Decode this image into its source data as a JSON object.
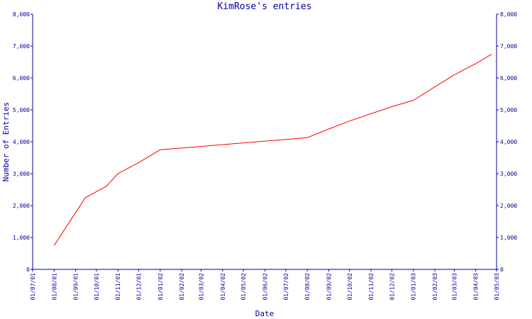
{
  "chart_data": {
    "type": "line",
    "title": "KimRose's entries",
    "xlabel": "Date",
    "ylabel": "Number of Entries",
    "ylim": [
      0,
      8000
    ],
    "yticks": [
      0,
      1000,
      2000,
      3000,
      4000,
      5000,
      6000,
      7000,
      8000
    ],
    "ytick_labels": [
      "0",
      "1,000",
      "2,000",
      "3,000",
      "4,000",
      "5,000",
      "6,000",
      "7,000",
      "8,000"
    ],
    "xlim": [
      "2001-07-01",
      "2003-05-01"
    ],
    "xtick_dates": [
      "2001-07-01",
      "2001-08-01",
      "2001-09-01",
      "2001-10-01",
      "2001-11-01",
      "2001-12-01",
      "2002-01-01",
      "2002-02-01",
      "2002-03-01",
      "2002-04-01",
      "2002-05-01",
      "2002-06-01",
      "2002-07-01",
      "2002-08-01",
      "2002-09-01",
      "2002-10-01",
      "2002-11-01",
      "2002-12-01",
      "2003-01-01",
      "2003-02-01",
      "2003-03-01",
      "2003-04-01",
      "2003-05-01"
    ],
    "xtick_labels": [
      "01/07/01",
      "01/08/01",
      "01/09/01",
      "01/10/01",
      "01/11/01",
      "01/12/01",
      "01/01/02",
      "01/02/02",
      "01/03/02",
      "01/04/02",
      "01/05/02",
      "01/06/02",
      "01/07/02",
      "01/08/02",
      "01/09/02",
      "01/10/02",
      "01/11/02",
      "01/12/02",
      "01/01/03",
      "01/02/03",
      "01/03/03",
      "01/04/03",
      "01/05/03"
    ],
    "grid": false,
    "right_axis": true,
    "series": [
      {
        "color": "#ff0000",
        "points": [
          {
            "x": "2001-08-01",
            "y": 750
          },
          {
            "x": "2001-09-15",
            "y": 2250
          },
          {
            "x": "2001-10-15",
            "y": 2600
          },
          {
            "x": "2001-11-01",
            "y": 3000
          },
          {
            "x": "2001-12-01",
            "y": 3350
          },
          {
            "x": "2002-01-01",
            "y": 3750
          },
          {
            "x": "2002-08-01",
            "y": 4130
          },
          {
            "x": "2002-09-01",
            "y": 4400
          },
          {
            "x": "2002-10-01",
            "y": 4650
          },
          {
            "x": "2002-11-01",
            "y": 4880
          },
          {
            "x": "2002-12-01",
            "y": 5100
          },
          {
            "x": "2003-01-01",
            "y": 5300
          },
          {
            "x": "2003-02-01",
            "y": 5720
          },
          {
            "x": "2003-03-01",
            "y": 6100
          },
          {
            "x": "2003-04-01",
            "y": 6450
          },
          {
            "x": "2003-04-24",
            "y": 6750
          }
        ]
      }
    ]
  }
}
